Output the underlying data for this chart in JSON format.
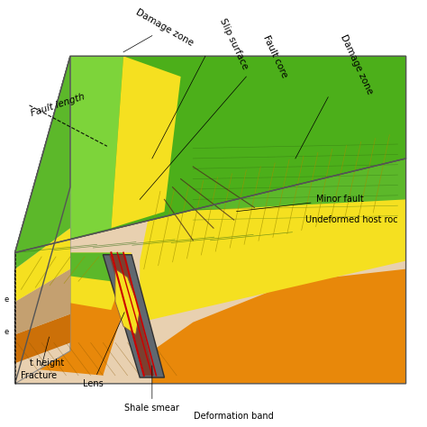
{
  "bg_color": "#ffffff",
  "labels": {
    "damage_zone_top": "Damage zone",
    "slip_surface": "Slip surface",
    "fault_core": "Fault core",
    "damage_zone_right": "Damage zone",
    "fault_length": "Fault length",
    "undeformed_host_rock": "Undeformed host roc",
    "minor_fault": "Minor fault",
    "height": "t height",
    "fracture": "Fracture",
    "lens": "Lens",
    "shale_smear": "Shale smear",
    "deformation_band": "Deformation band"
  },
  "colors": {
    "green_bright": "#4caf1a",
    "green_mid": "#5cb82a",
    "green_light_top": "#7dd43a",
    "green_pale": "#a8d870",
    "yellow_bright": "#f5e020",
    "yellow_mid": "#e8cc00",
    "orange_bright": "#e8880a",
    "orange_mid": "#cc7008",
    "orange_dark": "#b85c00",
    "tan_light": "#e8d0b0",
    "tan_mid": "#d4b896",
    "tan_dark": "#c4a070",
    "brown_dark": "#7b4030",
    "brown_mid": "#a05030",
    "gray_fault": "#606870",
    "red_line": "#cc0000",
    "dark_line": "#383838",
    "white": "#ffffff",
    "black": "#000000"
  }
}
